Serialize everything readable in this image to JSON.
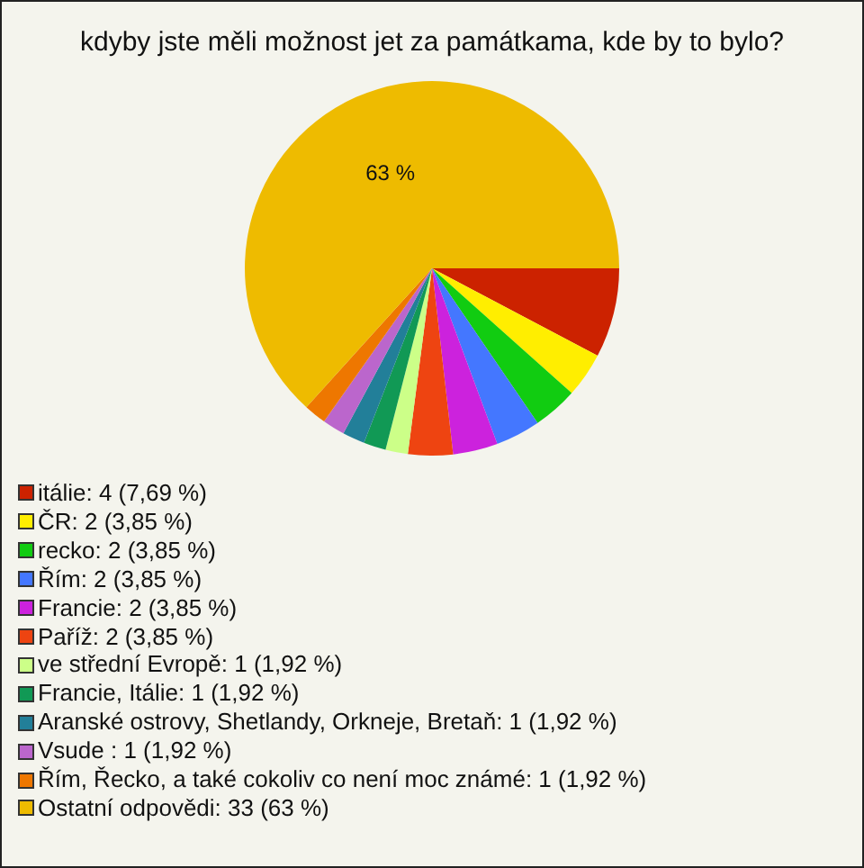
{
  "chart_data": {
    "type": "pie",
    "title": "kdyby jste měli možnost jet za památkama, kde by to bylo?",
    "categories": [
      "itálie: 4 (7,69 %)",
      "ČR: 2 (3,85 %)",
      "recko: 2 (3,85 %)",
      "Řím: 2 (3,85 %)",
      "Francie: 2 (3,85 %)",
      "Paříž: 2 (3,85 %)",
      "ve střední Evropě: 1 (1,92 %)",
      "Francie, Itálie: 1 (1,92 %)",
      "Aranské ostrovy, Shetlandy, Orkneje, Bretaň: 1 (1,92 %)",
      "Vsude : 1 (1,92 %)",
      "Řím, Řecko, a také cokoliv co není moc známé: 1 (1,92 %)",
      "Ostatní odpovědi: 33 (63 %)"
    ],
    "values": [
      7.69,
      3.85,
      3.85,
      3.85,
      3.85,
      3.85,
      1.92,
      1.92,
      1.92,
      1.92,
      1.92,
      63
    ],
    "colors": [
      "#cc2200",
      "#ffee00",
      "#11cc11",
      "#4477ff",
      "#cc22dd",
      "#ee4411",
      "#ccff88",
      "#119955",
      "#227f99",
      "#bb66cc",
      "#ee7700",
      "#eebb00"
    ],
    "value_labels": [
      null,
      null,
      null,
      null,
      null,
      null,
      null,
      null,
      null,
      null,
      null,
      "63 %"
    ],
    "legend": "bottom left"
  }
}
